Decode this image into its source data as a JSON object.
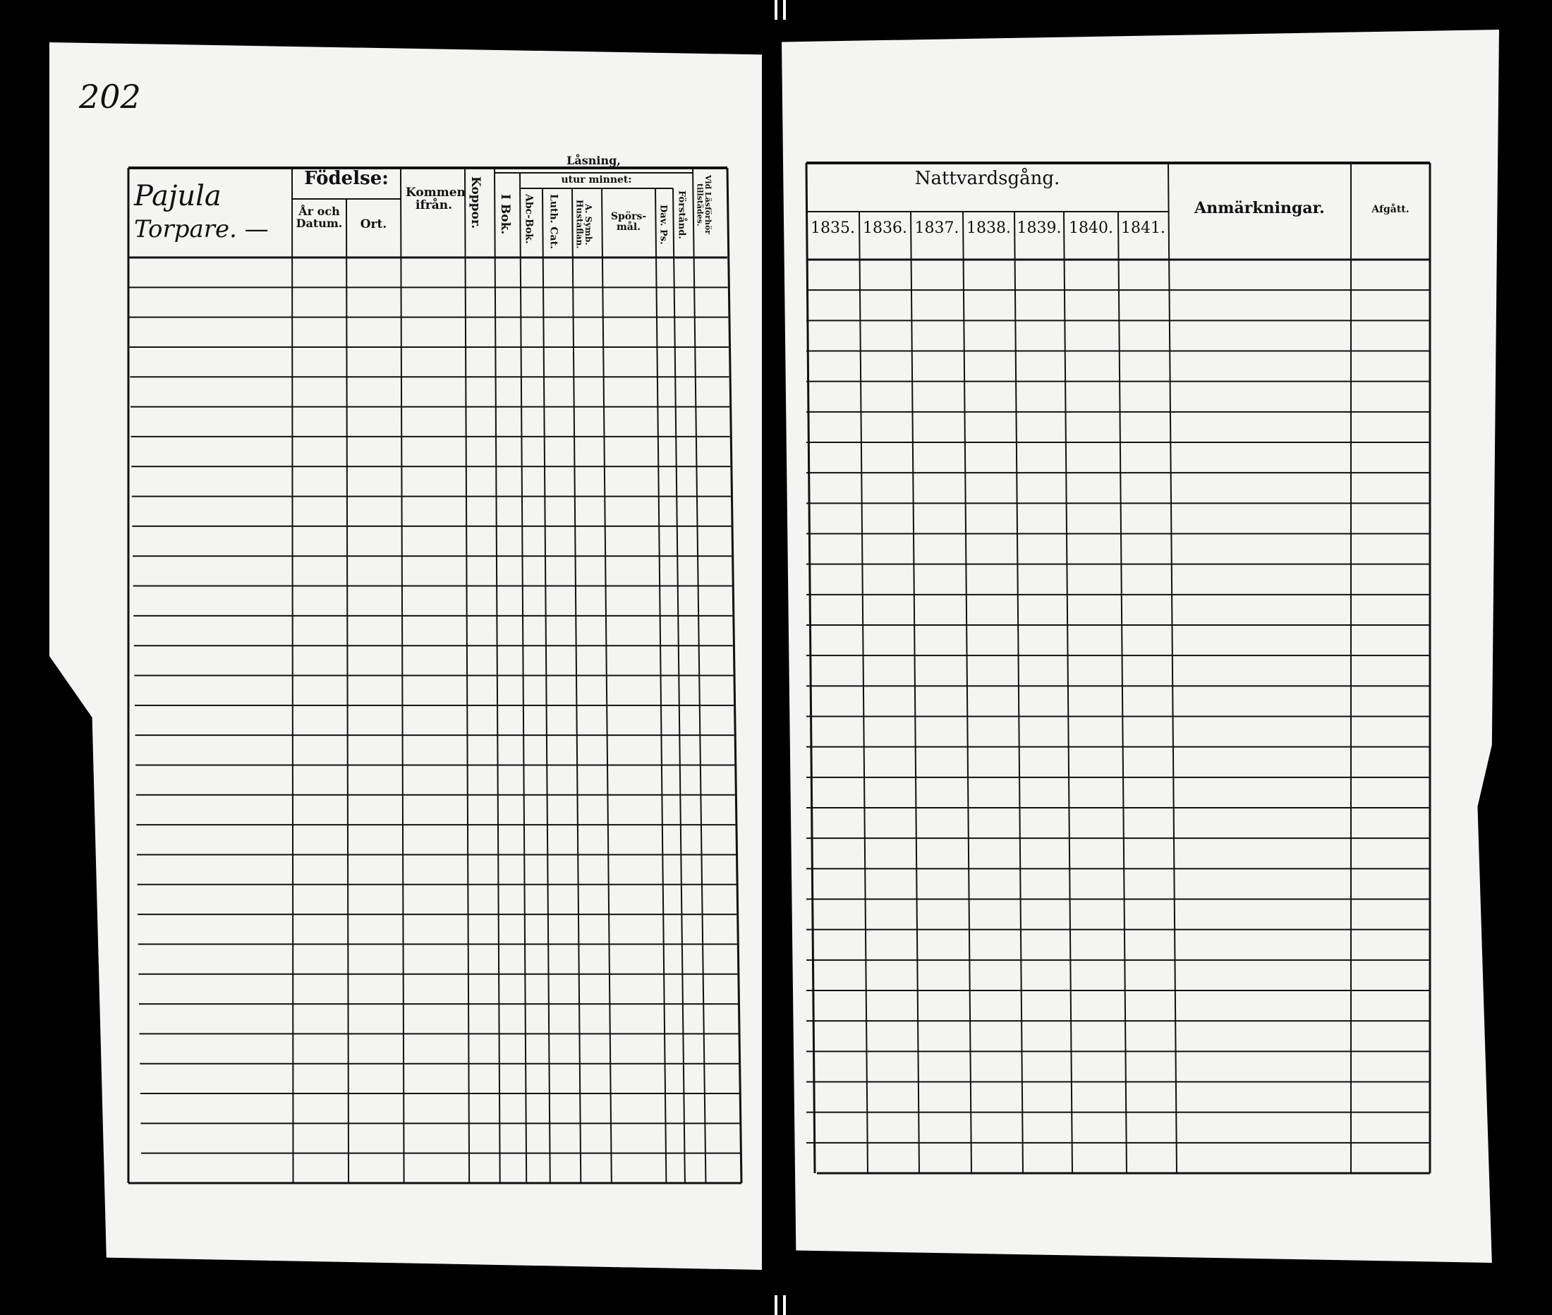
{
  "page_number": "202",
  "left_table": {
    "name_entry": [
      "Pajula",
      "Torpare. —"
    ],
    "headers": {
      "fodelse": "Födelse:",
      "ar_och_datum": "År och Datum.",
      "ort": "Ort.",
      "kommen_ifran": "Kommen ifrån.",
      "koppor": "Koppor.",
      "lasning": "Låsning,",
      "i_bok": "I Bok.",
      "utur_minnet": "utur minnet:",
      "abc_bok": "Abc-Bok.",
      "luth_cat": "Luth. Cat.",
      "a_symb": "A. Symb. Hustaflan.",
      "sporsmal": "Spörs-mål.",
      "dav_ps": "Dav. Ps.",
      "forstand": "Förstånd.",
      "vid_lasforhor": "Vid Läsförhör tillstädes."
    }
  },
  "right_table": {
    "headers": {
      "nattvardsgang": "Nattvardsgång.",
      "years": [
        "1835.",
        "1836.",
        "1837.",
        "1838.",
        "1839.",
        "1840.",
        "1841."
      ],
      "anmarkningar": "Anmärkningar.",
      "afgatt": "Afgått."
    }
  }
}
